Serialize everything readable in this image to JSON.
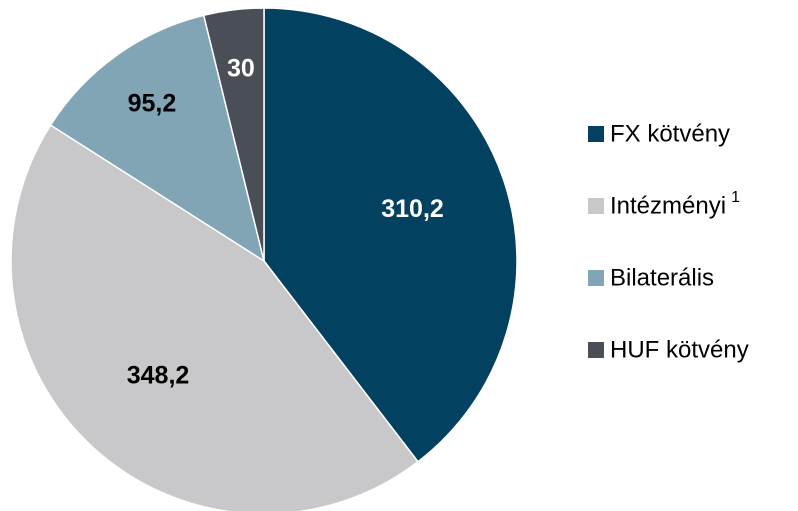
{
  "chart_data": {
    "type": "pie",
    "categories": [
      "FX kötvény",
      "Intézményi",
      "Bilaterális",
      "HUF kötvény"
    ],
    "category_notes": [
      null,
      "1",
      null,
      null
    ],
    "values": [
      310.2,
      348.2,
      95.2,
      30
    ],
    "value_labels": [
      "310,2",
      "348,2",
      "95,2",
      "30"
    ],
    "colors": [
      "#02415f",
      "#c8c8ca",
      "#82a5b5",
      "#4a4e56"
    ],
    "label_colors": [
      "#ffffff",
      "#000000",
      "#000000",
      "#ffffff"
    ],
    "legend": "right"
  }
}
